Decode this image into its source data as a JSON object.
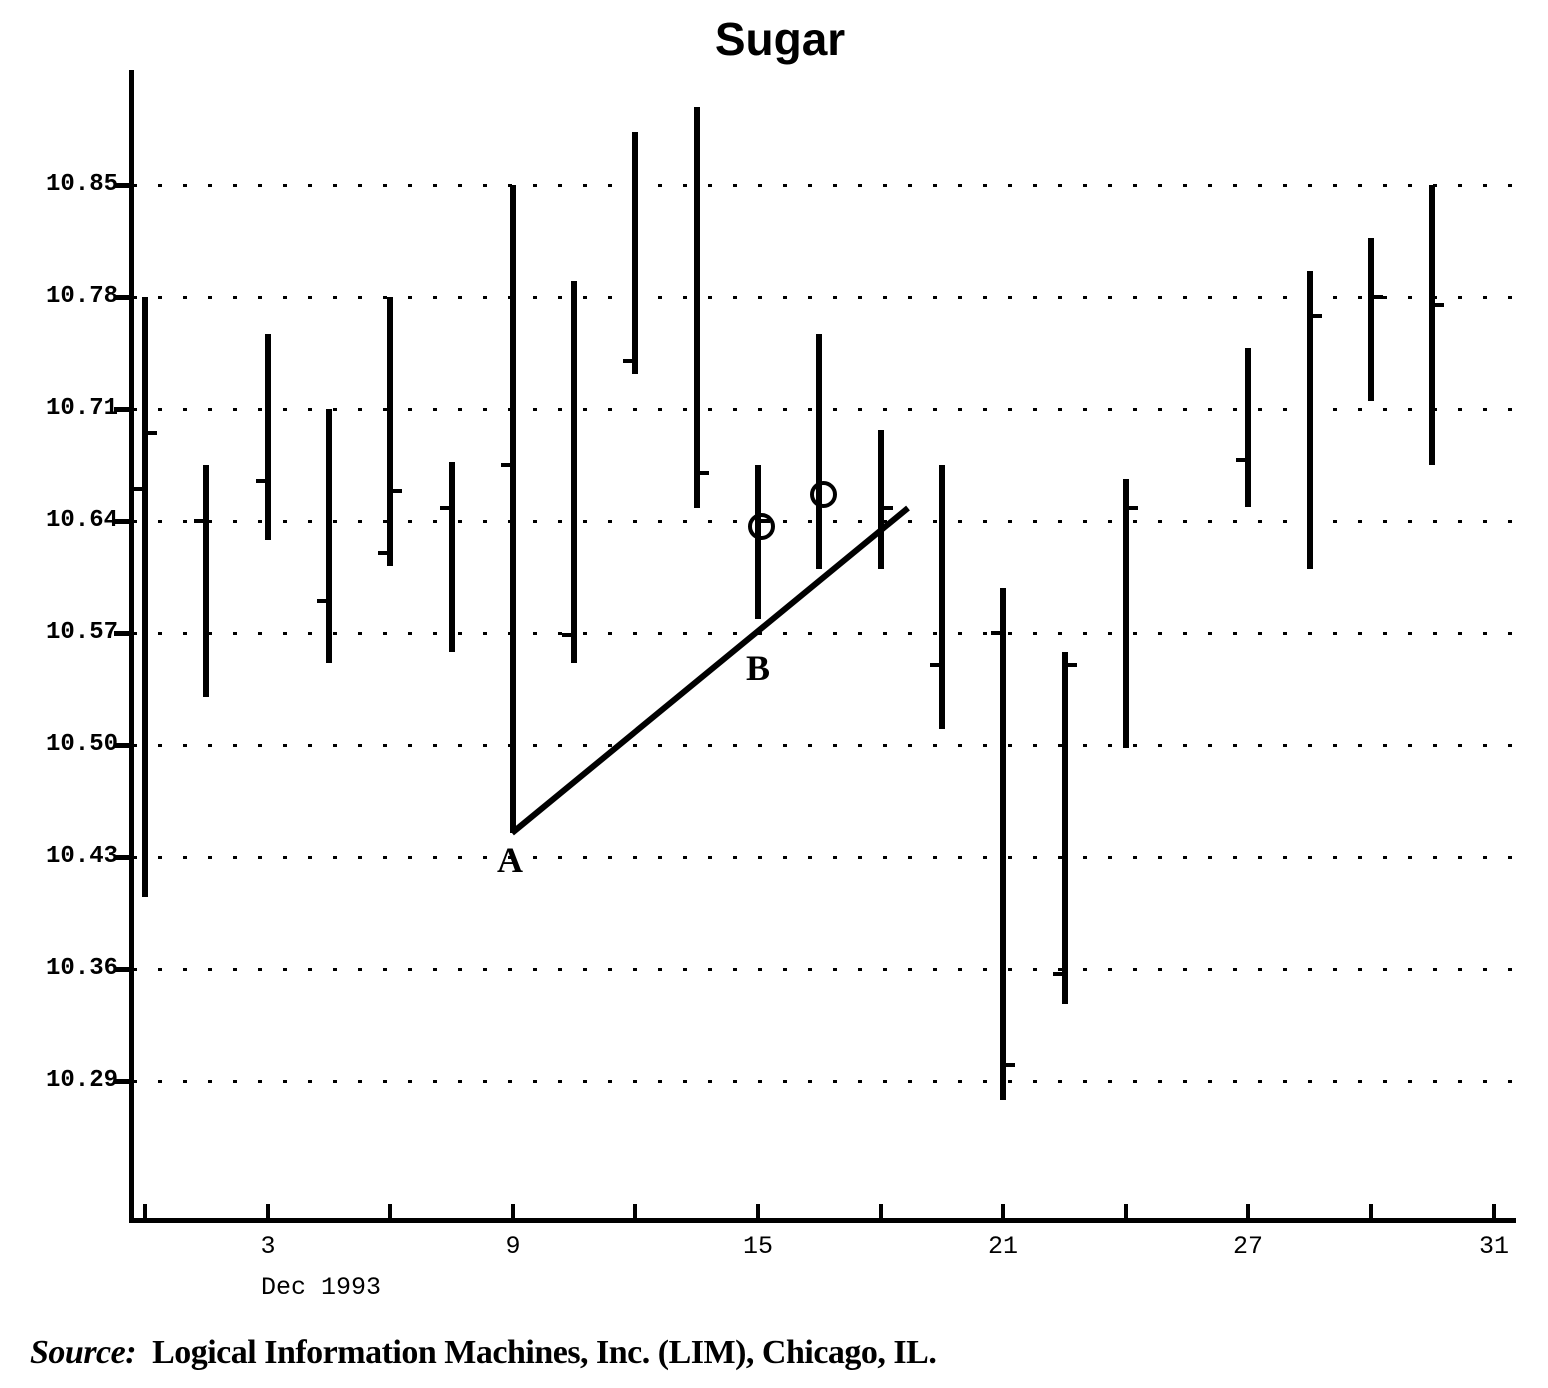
{
  "chart_data": {
    "type": "bar",
    "subtype": "daily-high-low-price-bars",
    "title": "Sugar",
    "x_axis": {
      "month_label": "Dec 1993",
      "tick_labels": [
        {
          "label": "3",
          "slot": 2
        },
        {
          "label": "9",
          "slot": 6
        },
        {
          "label": "15",
          "slot": 10
        },
        {
          "label": "21",
          "slot": 14
        },
        {
          "label": "27",
          "slot": 18
        },
        {
          "label": "31",
          "slot": 22
        }
      ],
      "minor_tick_slots": [
        0,
        2,
        4,
        6,
        8,
        10,
        12,
        14,
        16,
        18,
        20,
        22
      ]
    },
    "y_axis": {
      "tick_labels": [
        "10.85",
        "10.78",
        "10.71",
        "10.64",
        "10.57",
        "10.50",
        "10.43",
        "10.36",
        "10.29"
      ],
      "tick_values": [
        10.85,
        10.78,
        10.71,
        10.64,
        10.57,
        10.5,
        10.43,
        10.36,
        10.29
      ],
      "min_shown": 10.29,
      "max_shown": 10.85,
      "step": 0.07,
      "grid": "dotted"
    },
    "bars": [
      {
        "date": "Dec 1",
        "slot": 0,
        "high": 10.78,
        "low": 10.405,
        "open": 10.66,
        "close": 10.695
      },
      {
        "date": "Dec 2",
        "slot": 1,
        "high": 10.675,
        "low": 10.53,
        "open": 10.64,
        "close": null
      },
      {
        "date": "Dec 3",
        "slot": 2,
        "high": 10.757,
        "low": 10.628,
        "open": 10.665,
        "close": null
      },
      {
        "date": "Dec 6",
        "slot": 3,
        "high": 10.71,
        "low": 10.551,
        "open": 10.59,
        "close": null
      },
      {
        "date": "Dec 7",
        "slot": 4,
        "high": 10.78,
        "low": 10.612,
        "open": 10.62,
        "close": 10.659
      },
      {
        "date": "Dec 8",
        "slot": 5,
        "high": 10.677,
        "low": 10.558,
        "open": 10.648,
        "close": null
      },
      {
        "date": "Dec 9",
        "slot": 6,
        "high": 10.85,
        "low": 10.445,
        "open": 10.675,
        "close": null
      },
      {
        "date": "Dec 10",
        "slot": 7,
        "high": 10.79,
        "low": 10.551,
        "open": 10.569,
        "close": null
      },
      {
        "date": "Dec 13",
        "slot": 8,
        "high": 10.883,
        "low": 10.732,
        "open": 10.74,
        "close": null
      },
      {
        "date": "Dec 14",
        "slot": 9,
        "high": 10.899,
        "low": 10.648,
        "open": null,
        "close": 10.67
      },
      {
        "date": "Dec 15",
        "slot": 10,
        "high": 10.675,
        "low": 10.579,
        "open": null,
        "close": 10.64
      },
      {
        "date": "Dec 16",
        "slot": 11,
        "high": 10.757,
        "low": 10.61,
        "open": null,
        "close": null
      },
      {
        "date": "Dec 17",
        "slot": 12,
        "high": 10.697,
        "low": 10.61,
        "open": null,
        "close": 10.648
      },
      {
        "date": "Dec 20",
        "slot": 13,
        "high": 10.675,
        "low": 10.51,
        "open": 10.55,
        "close": null
      },
      {
        "date": "Dec 21",
        "slot": 14,
        "high": 10.598,
        "low": 10.278,
        "open": 10.57,
        "close": 10.3
      },
      {
        "date": "Dec 22",
        "slot": 15,
        "high": 10.558,
        "low": 10.338,
        "open": 10.357,
        "close": 10.55
      },
      {
        "date": "Dec 23",
        "slot": 16,
        "high": 10.666,
        "low": 10.498,
        "open": null,
        "close": 10.648
      },
      {
        "date": "Dec 27",
        "slot": 18,
        "high": 10.748,
        "low": 10.649,
        "open": 10.678,
        "close": null
      },
      {
        "date": "Dec 28",
        "slot": 19,
        "high": 10.796,
        "low": 10.61,
        "open": null,
        "close": 10.768
      },
      {
        "date": "Dec 29",
        "slot": 20,
        "high": 10.817,
        "low": 10.715,
        "open": null,
        "close": 10.78
      },
      {
        "date": "Dec 30",
        "slot": 21,
        "high": 10.85,
        "low": 10.675,
        "open": null,
        "close": 10.775
      }
    ],
    "annotations": {
      "a_label": {
        "text": "A",
        "slot": 5.95,
        "price": 10.428
      },
      "b_label": {
        "text": "B",
        "slot": 10.0,
        "price": 10.548
      },
      "circles": [
        {
          "slot": 10.05,
          "price": 10.637
        },
        {
          "slot": 11.06,
          "price": 10.657
        }
      ],
      "trendline": {
        "from_slot": 5.99,
        "from_price": 10.445,
        "to_slot": 12.45,
        "to_price": 10.648
      }
    },
    "legend": "none"
  },
  "source": {
    "prefix": "Source:",
    "text": "Logical Information Machines, Inc. (LIM), Chicago, IL."
  }
}
